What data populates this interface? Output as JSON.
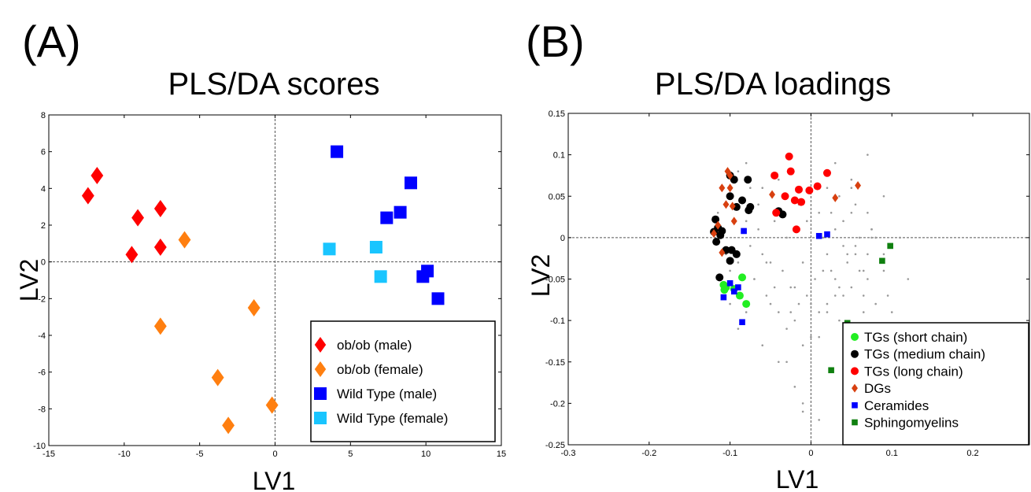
{
  "panels": {
    "a": {
      "label": "(A)"
    },
    "b": {
      "label": "(B)"
    }
  },
  "chart_data": [
    {
      "type": "scatter",
      "title": "PLS/DA scores",
      "xlabel": "LV1",
      "ylabel": "LV2",
      "xlim": [
        -15,
        15
      ],
      "ylim": [
        -10,
        8
      ],
      "xticks": [
        "-15",
        "-10",
        "-5",
        "0",
        "5",
        "10",
        "15"
      ],
      "yticks": [
        "-10",
        "-8",
        "-6",
        "-4",
        "-2",
        "0",
        "2",
        "4",
        "6",
        "8"
      ],
      "reference_lines": {
        "x": 0,
        "y": 0
      },
      "legend_position": "bottom-right",
      "series": [
        {
          "name": "ob/ob (male)",
          "marker": "diamond",
          "color": "#ff0000",
          "x": [
            -12.4,
            -11.8,
            -9.1,
            -7.6,
            -9.5,
            -7.6
          ],
          "y": [
            3.6,
            4.7,
            2.4,
            2.9,
            0.4,
            0.8
          ]
        },
        {
          "name": "ob/ob (female)",
          "marker": "diamond",
          "color": "#ff7f10",
          "x": [
            -6.0,
            -1.4,
            -7.6,
            -3.8,
            -0.2,
            -3.1
          ],
          "y": [
            1.2,
            -2.5,
            -3.5,
            -6.3,
            -7.8,
            -8.9
          ]
        },
        {
          "name": "Wild Type (male)",
          "marker": "square",
          "color": "#0000ff",
          "x": [
            4.1,
            7.4,
            8.3,
            9.0,
            10.1,
            9.8,
            10.8
          ],
          "y": [
            6.0,
            2.4,
            2.7,
            4.3,
            -0.5,
            -0.8,
            -2.0
          ]
        },
        {
          "name": "Wild Type (female)",
          "marker": "square",
          "color": "#19c5ff",
          "x": [
            3.6,
            6.7,
            7.0
          ],
          "y": [
            0.7,
            0.8,
            -0.8
          ]
        }
      ]
    },
    {
      "type": "scatter",
      "title": "PLS/DA loadings",
      "xlabel": "LV1",
      "ylabel": "LV2",
      "xlim": [
        -0.3,
        0.27
      ],
      "ylim": [
        -0.25,
        0.15
      ],
      "xticks": [
        "-0.3",
        "-0.2",
        "-0.1",
        "0",
        "0.1",
        "0.2"
      ],
      "yticks": [
        "-0.25",
        "-0.2",
        "-0.15",
        "-0.1",
        "-0.05",
        "0",
        "0.05",
        "0.1",
        "0.15"
      ],
      "reference_lines": {
        "x": 0,
        "y": 0
      },
      "legend_position": "bottom-right",
      "series": [
        {
          "name": "",
          "marker": "dot",
          "color": "#999999",
          "x": [
            -0.115,
            -0.11,
            -0.105,
            -0.1,
            -0.095,
            -0.09,
            -0.085,
            -0.08,
            -0.075,
            -0.07,
            -0.065,
            -0.06,
            -0.055,
            -0.05,
            -0.045,
            -0.04,
            -0.035,
            -0.03,
            -0.025,
            -0.02,
            -0.015,
            -0.01,
            -0.005,
            0.0,
            0.005,
            0.01,
            0.015,
            0.02,
            0.025,
            0.03,
            0.035,
            0.04,
            0.045,
            0.05,
            0.055,
            0.06,
            0.065,
            0.07,
            0.075,
            0.08,
            0.085,
            0.09,
            -0.1,
            -0.09,
            -0.08,
            -0.07,
            -0.06,
            -0.05,
            -0.04,
            -0.03,
            -0.02,
            -0.01,
            0.0,
            0.01,
            0.02,
            0.03,
            0.04,
            0.05,
            0.06,
            0.07,
            0.08,
            -0.095,
            -0.085,
            -0.075,
            -0.065,
            -0.055,
            -0.045,
            -0.035,
            -0.025,
            -0.015,
            -0.005,
            0.005,
            0.015,
            0.025,
            0.035,
            0.045,
            0.055,
            0.065,
            0.075,
            -0.03,
            -0.02,
            -0.01,
            0.0,
            0.01,
            0.02,
            0.03,
            0.04,
            0.05,
            0.06,
            0.07,
            0.08,
            0.09,
            0.1,
            0.11,
            0.12,
            0.035,
            0.045,
            0.055,
            0.065,
            0.075,
            0.085,
            0.095,
            0.105,
            -0.04,
            -0.06,
            -0.08,
            -0.09,
            0.03,
            0.05,
            0.07,
            0.09,
            -0.01,
            0.01,
            0.02
          ],
          "y": [
            0.03,
            0.0,
            -0.02,
            -0.04,
            -0.06,
            -0.03,
            0.01,
            0.02,
            -0.01,
            -0.05,
            0.04,
            -0.02,
            -0.07,
            -0.03,
            0.02,
            -0.09,
            -0.04,
            0.0,
            -0.06,
            -0.1,
            -0.08,
            -0.03,
            0.02,
            -0.12,
            -0.05,
            -0.09,
            0.0,
            -0.02,
            -0.04,
            -0.07,
            -0.1,
            0.02,
            -0.03,
            -0.06,
            -0.01,
            -0.13,
            -0.04,
            -0.02,
            0.0,
            -0.08,
            -0.11,
            -0.04,
            -0.08,
            0.08,
            0.09,
            -0.05,
            0.06,
            -0.08,
            0.07,
            -0.11,
            -0.06,
            -0.13,
            -0.08,
            0.03,
            0.06,
            0.01,
            -0.01,
            0.03,
            0.0,
            -0.05,
            0.0,
            -0.02,
            -0.05,
            0.06,
            0.01,
            -0.03,
            -0.06,
            0.05,
            -0.09,
            0.04,
            -0.07,
            0.06,
            -0.04,
            0.03,
            0.05,
            -0.02,
            0.04,
            -0.07,
            0.01,
            -0.15,
            -0.18,
            -0.2,
            -0.17,
            -0.12,
            -0.09,
            -0.05,
            -0.07,
            0.06,
            -0.04,
            0.03,
            0.0,
            -0.02,
            -0.09,
            0.0,
            -0.05,
            -0.06,
            -0.14,
            -0.02,
            -0.09,
            0.01,
            -0.16,
            -0.07,
            -0.19,
            -0.15,
            -0.13,
            -0.09,
            -0.11,
            0.09,
            0.07,
            0.1,
            0.05,
            -0.21,
            -0.22,
            -0.08
          ]
        },
        {
          "name": "TGs (short chain)",
          "marker": "circle",
          "color": "#22ee22",
          "x": [
            -0.108,
            -0.105,
            -0.095,
            -0.088,
            -0.085,
            -0.08,
            -0.107
          ],
          "y": [
            -0.057,
            -0.06,
            -0.062,
            -0.07,
            -0.048,
            -0.08,
            -0.063
          ]
        },
        {
          "name": "TGs (medium chain)",
          "marker": "circle",
          "color": "#000000",
          "x": [
            -0.118,
            -0.115,
            -0.12,
            -0.112,
            -0.117,
            -0.11,
            -0.105,
            -0.1,
            -0.098,
            -0.092,
            -0.095,
            -0.1,
            -0.085,
            -0.078,
            -0.077,
            -0.075,
            -0.092,
            -0.04,
            -0.035,
            -0.1,
            -0.113
          ],
          "y": [
            0.022,
            0.012,
            0.007,
            0.003,
            -0.005,
            0.008,
            -0.015,
            -0.028,
            -0.015,
            -0.02,
            0.07,
            0.05,
            0.045,
            0.07,
            0.033,
            0.037,
            0.037,
            0.032,
            0.028,
            0.075,
            -0.048
          ]
        },
        {
          "name": "TGs (long chain)",
          "marker": "circle",
          "color": "#ff0000",
          "x": [
            -0.027,
            -0.025,
            -0.045,
            -0.032,
            -0.015,
            -0.02,
            -0.012,
            -0.002,
            0.008,
            0.02,
            -0.018,
            -0.043
          ],
          "y": [
            0.098,
            0.08,
            0.075,
            0.05,
            0.058,
            0.045,
            0.043,
            0.057,
            0.062,
            0.078,
            0.01,
            0.03
          ]
        },
        {
          "name": "DGs",
          "marker": "diamond",
          "color": "#d84010",
          "x": [
            -0.103,
            -0.1,
            -0.11,
            -0.105,
            -0.097,
            -0.095,
            -0.115,
            -0.12,
            -0.048,
            0.03,
            0.058,
            -0.11,
            -0.1
          ],
          "y": [
            0.08,
            0.075,
            0.06,
            0.04,
            0.038,
            0.02,
            0.015,
            0.005,
            0.052,
            0.048,
            0.063,
            -0.018,
            0.06
          ]
        },
        {
          "name": "Ceramides",
          "marker": "square",
          "color": "#0000ff",
          "x": [
            -0.083,
            -0.1,
            -0.108,
            -0.095,
            -0.085,
            -0.09,
            0.01,
            0.02
          ],
          "y": [
            0.008,
            -0.055,
            -0.072,
            -0.065,
            -0.102,
            -0.06,
            0.002,
            0.004
          ]
        },
        {
          "name": "Sphingomyelins",
          "marker": "square",
          "color": "#108010",
          "x": [
            0.045,
            0.06,
            0.088,
            0.098,
            0.025,
            0.06,
            0.055
          ],
          "y": [
            -0.103,
            -0.13,
            -0.028,
            -0.01,
            -0.16,
            -0.135,
            -0.12
          ]
        }
      ]
    }
  ]
}
